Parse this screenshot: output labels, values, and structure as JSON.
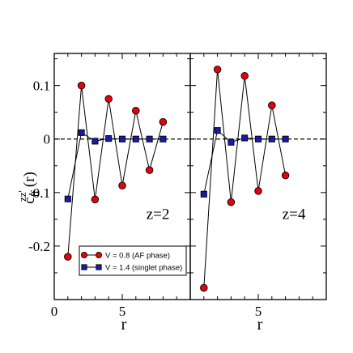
{
  "chart_data": [
    {
      "type": "line",
      "panel_label": "z=2",
      "xlabel": "r",
      "ylabel": "c",
      "ylabel_sub": "ff",
      "ylabel_sup": "zz'",
      "ylabel_arg": "(r)",
      "xlim": [
        0,
        10
      ],
      "ylim": [
        -0.3,
        0.16
      ],
      "x_ticks": [
        0,
        5
      ],
      "y_ticks": [
        0.1,
        0,
        -0.1,
        -0.2
      ],
      "y_tick_labels": [
        "0.1",
        "0",
        "-0.1",
        "-0.2"
      ],
      "x_tick_labels": [
        "0",
        "5"
      ],
      "reference_line_y": 0,
      "legend_position": "bottom-right",
      "series": [
        {
          "name": "V = 0.8 (AF phase)",
          "marker": "circle",
          "color": "#e8000b",
          "x": [
            1,
            2,
            3,
            4,
            5,
            6,
            7,
            8
          ],
          "y": [
            -0.22,
            0.1,
            -0.113,
            0.075,
            -0.087,
            0.053,
            -0.058,
            0.032
          ]
        },
        {
          "name": "V = 1.4 (singlet phase)",
          "marker": "square",
          "color": "#1a1aa8",
          "x": [
            1,
            2,
            3,
            4,
            5,
            6,
            7,
            8
          ],
          "y": [
            -0.112,
            0.012,
            -0.004,
            0.001,
            0.0,
            0.0,
            0.0,
            0.0
          ]
        }
      ]
    },
    {
      "type": "line",
      "panel_label": "z=4",
      "xlabel": "r",
      "xlim": [
        0,
        10
      ],
      "ylim": [
        -0.3,
        0.16
      ],
      "x_ticks": [
        0,
        5
      ],
      "x_tick_labels": [
        "",
        "5"
      ],
      "reference_line_y": 0,
      "series": [
        {
          "name": "V = 0.8 (AF phase)",
          "marker": "circle",
          "color": "#e8000b",
          "x": [
            1,
            2,
            3,
            4,
            5,
            6,
            7
          ],
          "y": [
            -0.278,
            0.13,
            -0.118,
            0.118,
            -0.097,
            0.063,
            -0.068
          ]
        },
        {
          "name": "V = 1.4 (singlet phase)",
          "marker": "square",
          "color": "#1a1aa8",
          "x": [
            1,
            2,
            3,
            4,
            5,
            6,
            7
          ],
          "y": [
            -0.103,
            0.016,
            -0.006,
            0.002,
            0.0,
            0.0,
            0.0
          ]
        }
      ]
    }
  ]
}
